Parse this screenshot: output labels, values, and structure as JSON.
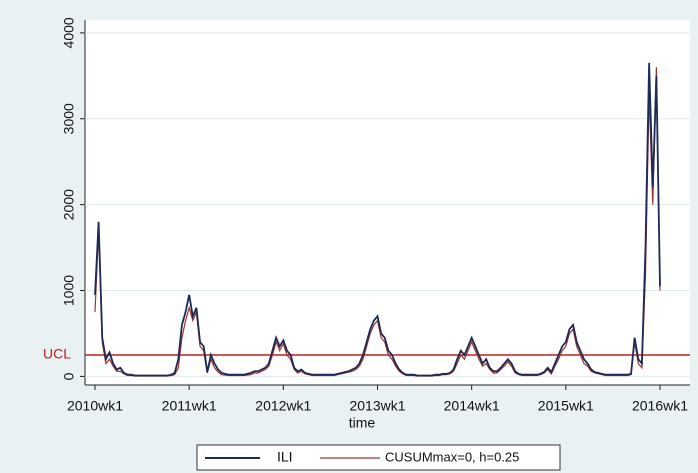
{
  "chart_data": {
    "type": "line",
    "xlabel": "time",
    "x": [
      "2010wk1",
      "2010wk3",
      "2010wk5",
      "2010wk7",
      "2010wk9",
      "2010wk11",
      "2010wk13",
      "2010wk15",
      "2010wk17",
      "2010wk19",
      "2010wk21",
      "2010wk23",
      "2010wk25",
      "2010wk27",
      "2010wk29",
      "2010wk31",
      "2010wk33",
      "2010wk35",
      "2010wk37",
      "2010wk39",
      "2010wk41",
      "2010wk43",
      "2010wk45",
      "2010wk47",
      "2010wk49",
      "2010wk51",
      "2011wk1",
      "2011wk3",
      "2011wk5",
      "2011wk7",
      "2011wk9",
      "2011wk11",
      "2011wk13",
      "2011wk15",
      "2011wk17",
      "2011wk19",
      "2011wk21",
      "2011wk23",
      "2011wk25",
      "2011wk27",
      "2011wk29",
      "2011wk31",
      "2011wk33",
      "2011wk35",
      "2011wk37",
      "2011wk39",
      "2011wk41",
      "2011wk43",
      "2011wk45",
      "2011wk47",
      "2011wk49",
      "2011wk51",
      "2012wk1",
      "2012wk3",
      "2012wk5",
      "2012wk7",
      "2012wk9",
      "2012wk11",
      "2012wk13",
      "2012wk15",
      "2012wk17",
      "2012wk19",
      "2012wk21",
      "2012wk23",
      "2012wk25",
      "2012wk27",
      "2012wk29",
      "2012wk31",
      "2012wk33",
      "2012wk35",
      "2012wk37",
      "2012wk39",
      "2012wk41",
      "2012wk43",
      "2012wk45",
      "2012wk47",
      "2012wk49",
      "2012wk51",
      "2013wk1",
      "2013wk3",
      "2013wk5",
      "2013wk7",
      "2013wk9",
      "2013wk11",
      "2013wk13",
      "2013wk15",
      "2013wk17",
      "2013wk19",
      "2013wk21",
      "2013wk23",
      "2013wk25",
      "2013wk27",
      "2013wk29",
      "2013wk31",
      "2013wk33",
      "2013wk35",
      "2013wk37",
      "2013wk39",
      "2013wk41",
      "2013wk43",
      "2013wk45",
      "2013wk47",
      "2013wk49",
      "2013wk51",
      "2014wk1",
      "2014wk3",
      "2014wk5",
      "2014wk7",
      "2014wk9",
      "2014wk11",
      "2014wk13",
      "2014wk15",
      "2014wk17",
      "2014wk19",
      "2014wk21",
      "2014wk23",
      "2014wk25",
      "2014wk27",
      "2014wk29",
      "2014wk31",
      "2014wk33",
      "2014wk35",
      "2014wk37",
      "2014wk39",
      "2014wk41",
      "2014wk43",
      "2014wk45",
      "2014wk47",
      "2014wk49",
      "2014wk51",
      "2015wk1",
      "2015wk3",
      "2015wk5",
      "2015wk7",
      "2015wk9",
      "2015wk11",
      "2015wk13",
      "2015wk15",
      "2015wk17",
      "2015wk19",
      "2015wk21",
      "2015wk23",
      "2015wk25",
      "2015wk27",
      "2015wk29",
      "2015wk31",
      "2015wk33",
      "2015wk35",
      "2015wk37",
      "2015wk39",
      "2015wk41",
      "2015wk43",
      "2015wk45",
      "2015wk47",
      "2015wk49",
      "2015wk51",
      "2016wk1"
    ],
    "series": [
      {
        "name": "ILI",
        "color": "#1c2a55",
        "values": [
          950,
          1800,
          450,
          200,
          280,
          150,
          80,
          100,
          40,
          20,
          20,
          10,
          10,
          10,
          10,
          10,
          10,
          10,
          10,
          10,
          10,
          20,
          40,
          200,
          600,
          750,
          950,
          700,
          800,
          400,
          350,
          50,
          250,
          150,
          80,
          40,
          30,
          20,
          20,
          20,
          20,
          20,
          30,
          40,
          60,
          60,
          80,
          100,
          150,
          300,
          450,
          350,
          420,
          300,
          250,
          100,
          60,
          80,
          40,
          30,
          20,
          20,
          20,
          20,
          20,
          20,
          20,
          30,
          40,
          50,
          60,
          80,
          100,
          150,
          250,
          400,
          550,
          650,
          700,
          500,
          450,
          300,
          250,
          150,
          80,
          40,
          20,
          20,
          20,
          10,
          10,
          10,
          10,
          10,
          20,
          20,
          30,
          30,
          40,
          80,
          200,
          300,
          250,
          350,
          450,
          350,
          250,
          150,
          200,
          100,
          60,
          60,
          100,
          150,
          200,
          150,
          60,
          30,
          20,
          20,
          20,
          20,
          20,
          30,
          50,
          100,
          50,
          150,
          250,
          350,
          400,
          550,
          600,
          400,
          300,
          200,
          150,
          80,
          50,
          40,
          30,
          20,
          20,
          20,
          20,
          20,
          20,
          20,
          30,
          450,
          200,
          150,
          1500,
          3650,
          2200,
          3500,
          1050
        ]
      },
      {
        "name": "CUSUMmax=0, h=0.25",
        "color": "#a3322e",
        "values": [
          750,
          1700,
          400,
          150,
          200,
          120,
          60,
          60,
          30,
          10,
          10,
          5,
          5,
          5,
          5,
          5,
          5,
          5,
          5,
          5,
          5,
          10,
          20,
          100,
          450,
          650,
          800,
          650,
          750,
          350,
          300,
          40,
          200,
          100,
          50,
          20,
          15,
          10,
          10,
          10,
          10,
          10,
          15,
          20,
          40,
          40,
          60,
          80,
          120,
          250,
          400,
          300,
          380,
          250,
          200,
          80,
          40,
          60,
          30,
          20,
          10,
          10,
          10,
          10,
          10,
          10,
          10,
          20,
          30,
          40,
          50,
          60,
          80,
          120,
          200,
          350,
          500,
          600,
          650,
          450,
          400,
          250,
          200,
          120,
          60,
          30,
          10,
          10,
          10,
          5,
          5,
          5,
          5,
          5,
          10,
          10,
          20,
          20,
          30,
          60,
          150,
          250,
          200,
          300,
          400,
          300,
          200,
          120,
          150,
          80,
          40,
          40,
          80,
          120,
          170,
          120,
          40,
          20,
          10,
          10,
          10,
          10,
          10,
          20,
          40,
          80,
          30,
          120,
          200,
          300,
          350,
          500,
          550,
          350,
          250,
          150,
          120,
          60,
          40,
          30,
          20,
          10,
          10,
          10,
          10,
          10,
          10,
          10,
          20,
          400,
          150,
          100,
          1200,
          3300,
          2000,
          3600,
          1000
        ]
      }
    ],
    "xticks": [
      "2010wk1",
      "2011wk1",
      "2012wk1",
      "2013wk1",
      "2014wk1",
      "2015wk1",
      "2016wk1"
    ],
    "ylim": [
      -100,
      4150
    ],
    "yticks": [
      0,
      1000,
      2000,
      3000,
      4000
    ],
    "grid": true,
    "ucl": {
      "label": "UCL",
      "value": 250,
      "color": "#c0201e"
    },
    "legend": "bottom"
  }
}
